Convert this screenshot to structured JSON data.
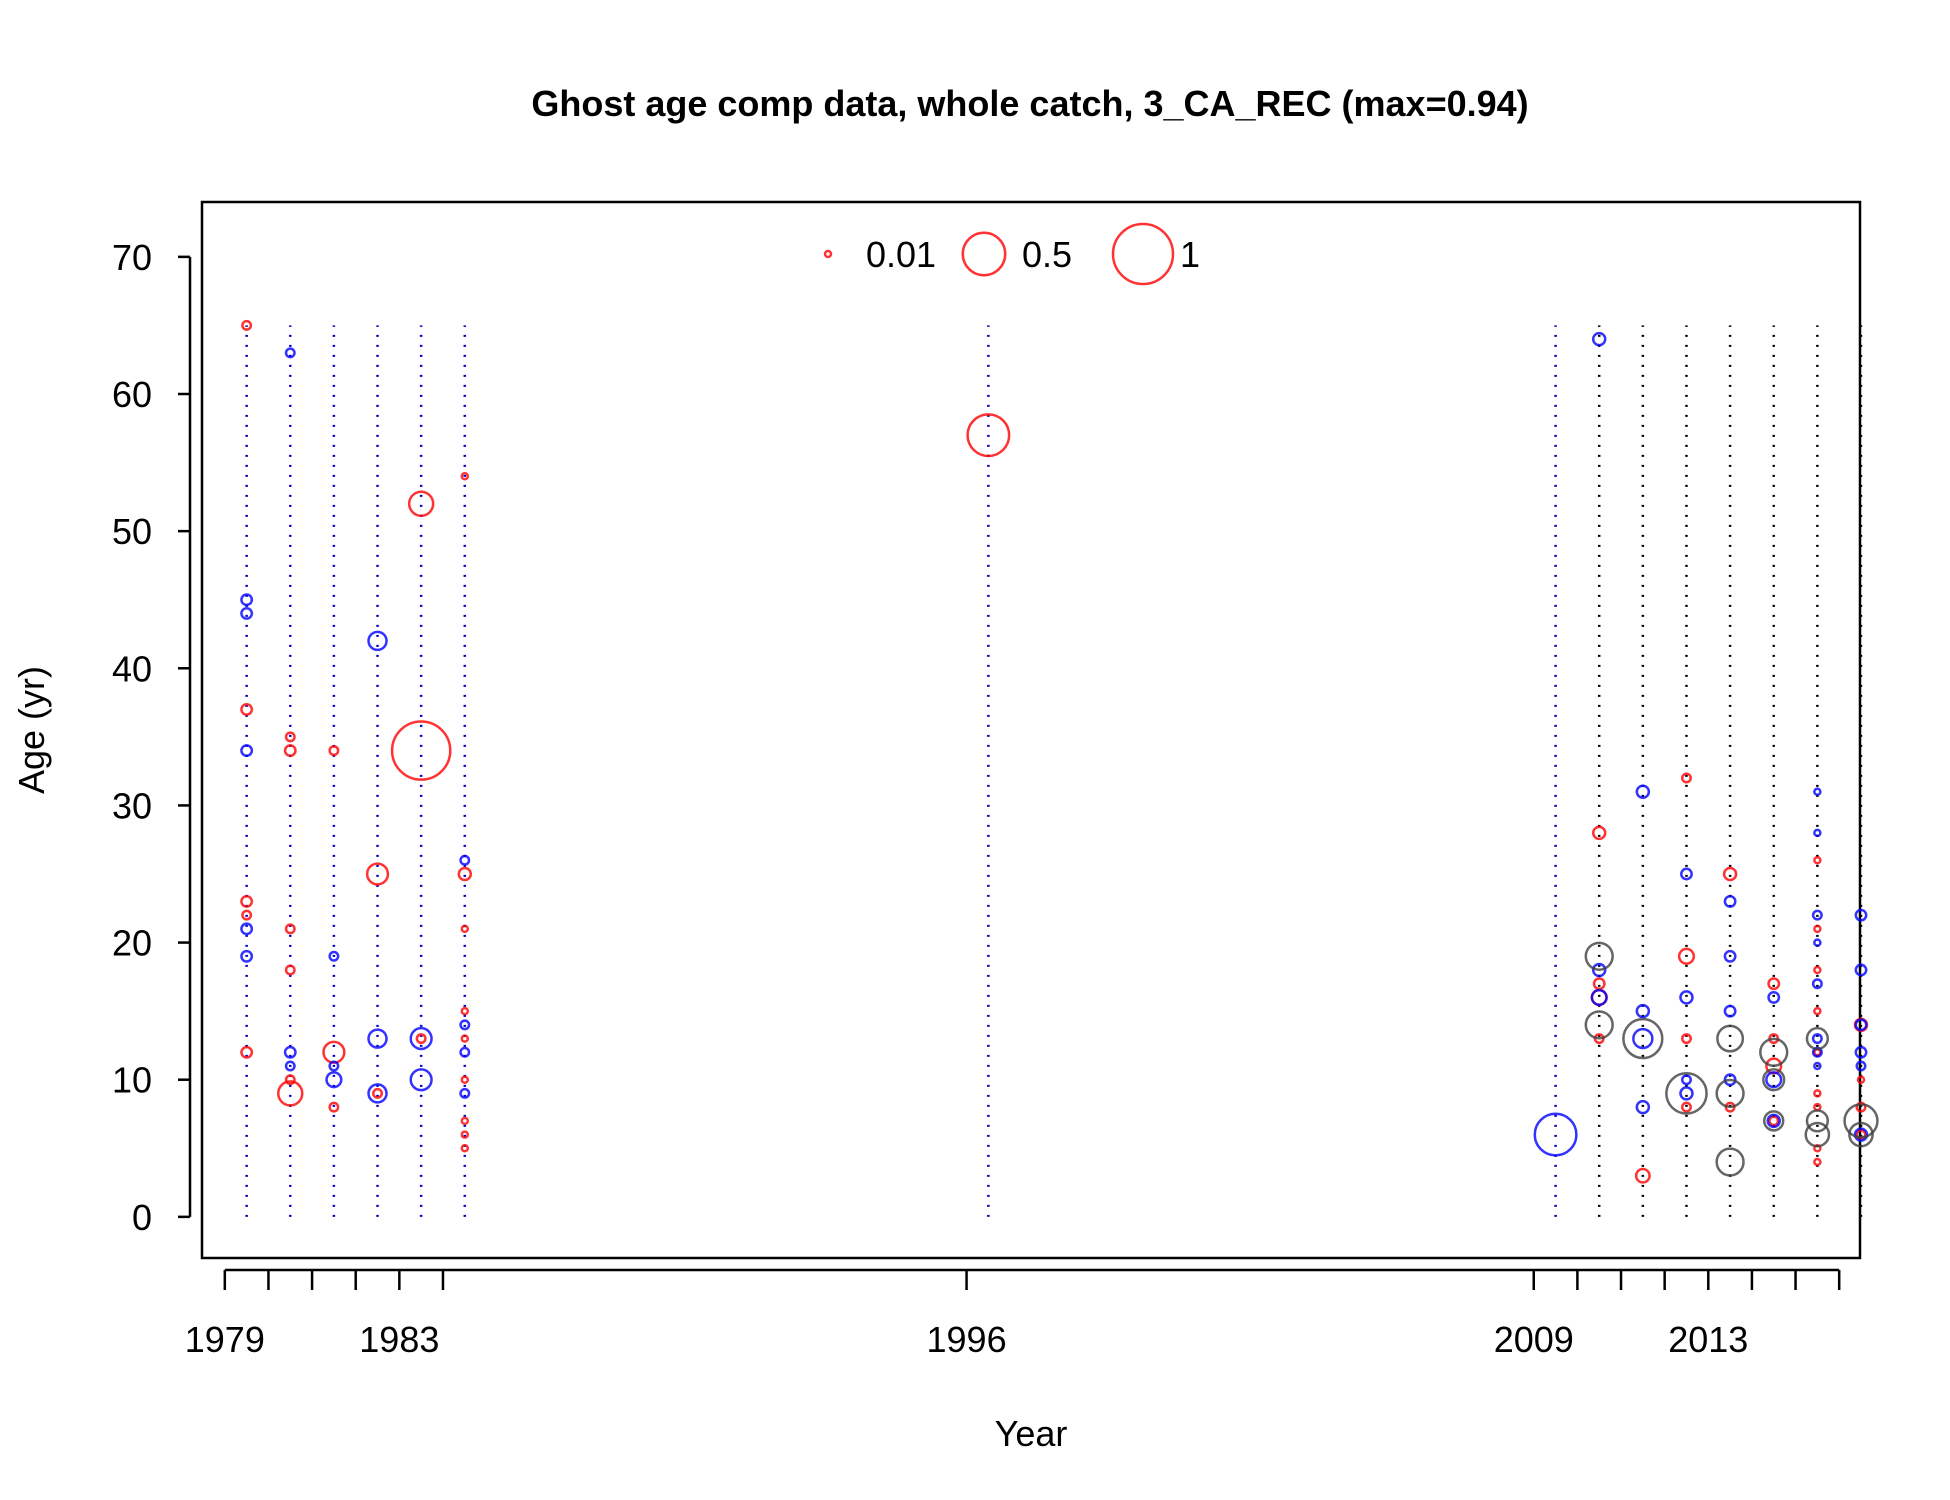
{
  "chart_data": {
    "type": "bubble",
    "title": "Ghost age comp data, whole catch, 3_CA_REC (max=0.94)",
    "xlabel": "Year",
    "ylabel": "Age (yr)",
    "xlim": [
      1978.5,
      2016.5
    ],
    "ylim": [
      -3,
      74
    ],
    "x_ticks": [
      1979,
      1980,
      1981,
      1982,
      1983,
      1984,
      1996,
      2009,
      2010,
      2011,
      2012,
      2013,
      2014,
      2015,
      2016
    ],
    "x_tick_labels": [
      {
        "year": 1979,
        "label": "1979"
      },
      {
        "year": 1983,
        "label": "1983"
      },
      {
        "year": 1996,
        "label": "1996"
      },
      {
        "year": 2009,
        "label": "2009"
      },
      {
        "year": 2013,
        "label": "2013"
      }
    ],
    "y_ticks": [
      0,
      10,
      20,
      30,
      40,
      50,
      60,
      70
    ],
    "y_tick_labels": [
      "0",
      "10",
      "20",
      "30",
      "40",
      "50",
      "60",
      "70"
    ],
    "grid": false,
    "legend": {
      "placement": "top-center",
      "entries": [
        {
          "label": "0.01",
          "value": 0.01
        },
        {
          "label": "0.5",
          "value": 0.5
        },
        {
          "label": "1",
          "value": 1
        }
      ]
    },
    "colors": {
      "positive": "#ff0000",
      "negative": "#0000ff",
      "ghost": "#404040",
      "guide_blue": "#0000cc",
      "guide_black": "#000000"
    },
    "columns": [
      {
        "x": 1979.5,
        "guide": "blue",
        "age_max": 65
      },
      {
        "x": 1980.5,
        "guide": "blue",
        "age_max": 65
      },
      {
        "x": 1981.5,
        "guide": "blue",
        "age_max": 65
      },
      {
        "x": 1982.5,
        "guide": "blue",
        "age_max": 65
      },
      {
        "x": 1983.5,
        "guide": "blue",
        "age_max": 65
      },
      {
        "x": 1984.5,
        "guide": "blue",
        "age_max": 65
      },
      {
        "x": 1996.5,
        "guide": "blue",
        "age_max": 65
      },
      {
        "x": 2009.5,
        "guide": "blue",
        "age_max": 65
      },
      {
        "x": 2010.5,
        "guide": "black",
        "age_max": 65
      },
      {
        "x": 2011.5,
        "guide": "black",
        "age_max": 65
      },
      {
        "x": 2012.5,
        "guide": "black",
        "age_max": 65
      },
      {
        "x": 2013.5,
        "guide": "black",
        "age_max": 65
      },
      {
        "x": 2014.5,
        "guide": "black",
        "age_max": 65
      },
      {
        "x": 2015.5,
        "guide": "black",
        "age_max": 65
      },
      {
        "x": 2016.5,
        "guide": "black",
        "age_max": 65
      }
    ],
    "series": [
      {
        "color_key": "positive",
        "points": [
          [
            1979.5,
            65,
            0.02
          ],
          [
            1979.5,
            37,
            0.03
          ],
          [
            1979.5,
            23,
            0.03
          ],
          [
            1979.5,
            22,
            0.02
          ],
          [
            1979.5,
            12,
            0.03
          ],
          [
            1980.5,
            35,
            0.02
          ],
          [
            1980.5,
            34,
            0.03
          ],
          [
            1980.5,
            21,
            0.02
          ],
          [
            1980.5,
            18,
            0.02
          ],
          [
            1980.5,
            10,
            0.02
          ],
          [
            1980.5,
            9,
            0.16
          ],
          [
            1981.5,
            34,
            0.02
          ],
          [
            1981.5,
            12,
            0.12
          ],
          [
            1981.5,
            8,
            0.02
          ],
          [
            1982.5,
            25,
            0.12
          ],
          [
            1982.5,
            9,
            0.02
          ],
          [
            1983.5,
            52,
            0.16
          ],
          [
            1983.5,
            34,
            0.94
          ],
          [
            1983.5,
            13,
            0.02
          ],
          [
            1984.5,
            54,
            0.01
          ],
          [
            1984.5,
            25,
            0.04
          ],
          [
            1984.5,
            21,
            0.01
          ],
          [
            1984.5,
            15,
            0.01
          ],
          [
            1984.5,
            13,
            0.01
          ],
          [
            1984.5,
            10,
            0.01
          ],
          [
            1984.5,
            7,
            0.01
          ],
          [
            1984.5,
            6,
            0.01
          ],
          [
            1984.5,
            5,
            0.01
          ],
          [
            1996.5,
            57,
            0.48
          ],
          [
            2010.5,
            28,
            0.04
          ],
          [
            2010.5,
            17,
            0.03
          ],
          [
            2010.5,
            16,
            0.06
          ],
          [
            2010.5,
            13,
            0.02
          ],
          [
            2011.5,
            3,
            0.05
          ],
          [
            2012.5,
            32,
            0.02
          ],
          [
            2012.5,
            19,
            0.06
          ],
          [
            2012.5,
            13,
            0.02
          ],
          [
            2012.5,
            8,
            0.02
          ],
          [
            2013.5,
            25,
            0.04
          ],
          [
            2013.5,
            8,
            0.02
          ],
          [
            2014.5,
            17,
            0.03
          ],
          [
            2014.5,
            13,
            0.02
          ],
          [
            2014.5,
            11,
            0.06
          ],
          [
            2014.5,
            7,
            0.02
          ],
          [
            2015.5,
            26,
            0.01
          ],
          [
            2015.5,
            21,
            0.01
          ],
          [
            2015.5,
            18,
            0.01
          ],
          [
            2015.5,
            15,
            0.01
          ],
          [
            2015.5,
            12,
            0.01
          ],
          [
            2015.5,
            9,
            0.01
          ],
          [
            2015.5,
            8,
            0.01
          ],
          [
            2015.5,
            5,
            0.01
          ],
          [
            2015.5,
            4,
            0.01
          ],
          [
            2016.5,
            14,
            0.04
          ],
          [
            2016.5,
            10,
            0.01
          ],
          [
            2016.5,
            8,
            0.02
          ],
          [
            2016.5,
            6,
            0.02
          ]
        ]
      },
      {
        "color_key": "negative",
        "points": [
          [
            1979.5,
            45,
            0.03
          ],
          [
            1979.5,
            44,
            0.03
          ],
          [
            1979.5,
            34,
            0.03
          ],
          [
            1979.5,
            21,
            0.03
          ],
          [
            1979.5,
            19,
            0.03
          ],
          [
            1980.5,
            63,
            0.02
          ],
          [
            1980.5,
            12,
            0.03
          ],
          [
            1980.5,
            11,
            0.02
          ],
          [
            1981.5,
            19,
            0.02
          ],
          [
            1981.5,
            11,
            0.02
          ],
          [
            1981.5,
            10,
            0.06
          ],
          [
            1982.5,
            42,
            0.09
          ],
          [
            1982.5,
            13,
            0.09
          ],
          [
            1982.5,
            9,
            0.09
          ],
          [
            1983.5,
            13,
            0.12
          ],
          [
            1983.5,
            10,
            0.12
          ],
          [
            1984.5,
            26,
            0.02
          ],
          [
            1984.5,
            14,
            0.02
          ],
          [
            1984.5,
            12,
            0.02
          ],
          [
            1984.5,
            9,
            0.02
          ],
          [
            2009.5,
            6,
            0.48
          ],
          [
            2010.5,
            64,
            0.04
          ],
          [
            2010.5,
            18,
            0.04
          ],
          [
            2010.5,
            16,
            0.06
          ],
          [
            2011.5,
            31,
            0.04
          ],
          [
            2011.5,
            15,
            0.04
          ],
          [
            2011.5,
            13,
            0.1
          ],
          [
            2011.5,
            8,
            0.04
          ],
          [
            2012.5,
            25,
            0.03
          ],
          [
            2012.5,
            16,
            0.04
          ],
          [
            2012.5,
            10,
            0.02
          ],
          [
            2012.5,
            9,
            0.04
          ],
          [
            2013.5,
            23,
            0.03
          ],
          [
            2013.5,
            19,
            0.03
          ],
          [
            2013.5,
            15,
            0.03
          ],
          [
            2013.5,
            10,
            0.03
          ],
          [
            2014.5,
            16,
            0.03
          ],
          [
            2014.5,
            10,
            0.06
          ],
          [
            2014.5,
            7,
            0.04
          ],
          [
            2015.5,
            31,
            0.01
          ],
          [
            2015.5,
            28,
            0.01
          ],
          [
            2015.5,
            22,
            0.02
          ],
          [
            2015.5,
            20,
            0.01
          ],
          [
            2015.5,
            17,
            0.02
          ],
          [
            2015.5,
            13,
            0.02
          ],
          [
            2015.5,
            12,
            0.02
          ],
          [
            2015.5,
            11,
            0.01
          ],
          [
            2016.5,
            22,
            0.03
          ],
          [
            2016.5,
            18,
            0.03
          ],
          [
            2016.5,
            14,
            0.03
          ],
          [
            2016.5,
            12,
            0.03
          ],
          [
            2016.5,
            11,
            0.02
          ],
          [
            2016.5,
            6,
            0.04
          ]
        ]
      },
      {
        "color_key": "ghost",
        "points": [
          [
            2010.5,
            19,
            0.2
          ],
          [
            2010.5,
            14,
            0.2
          ],
          [
            2011.5,
            13,
            0.42
          ],
          [
            2012.5,
            9,
            0.45
          ],
          [
            2013.5,
            13,
            0.18
          ],
          [
            2013.5,
            9,
            0.2
          ],
          [
            2013.5,
            4,
            0.2
          ],
          [
            2014.5,
            12,
            0.2
          ],
          [
            2014.5,
            10,
            0.12
          ],
          [
            2014.5,
            7,
            0.1
          ],
          [
            2015.5,
            13,
            0.12
          ],
          [
            2015.5,
            7,
            0.12
          ],
          [
            2015.5,
            6,
            0.15
          ],
          [
            2016.5,
            7,
            0.3
          ],
          [
            2016.5,
            6,
            0.15
          ]
        ]
      }
    ]
  }
}
